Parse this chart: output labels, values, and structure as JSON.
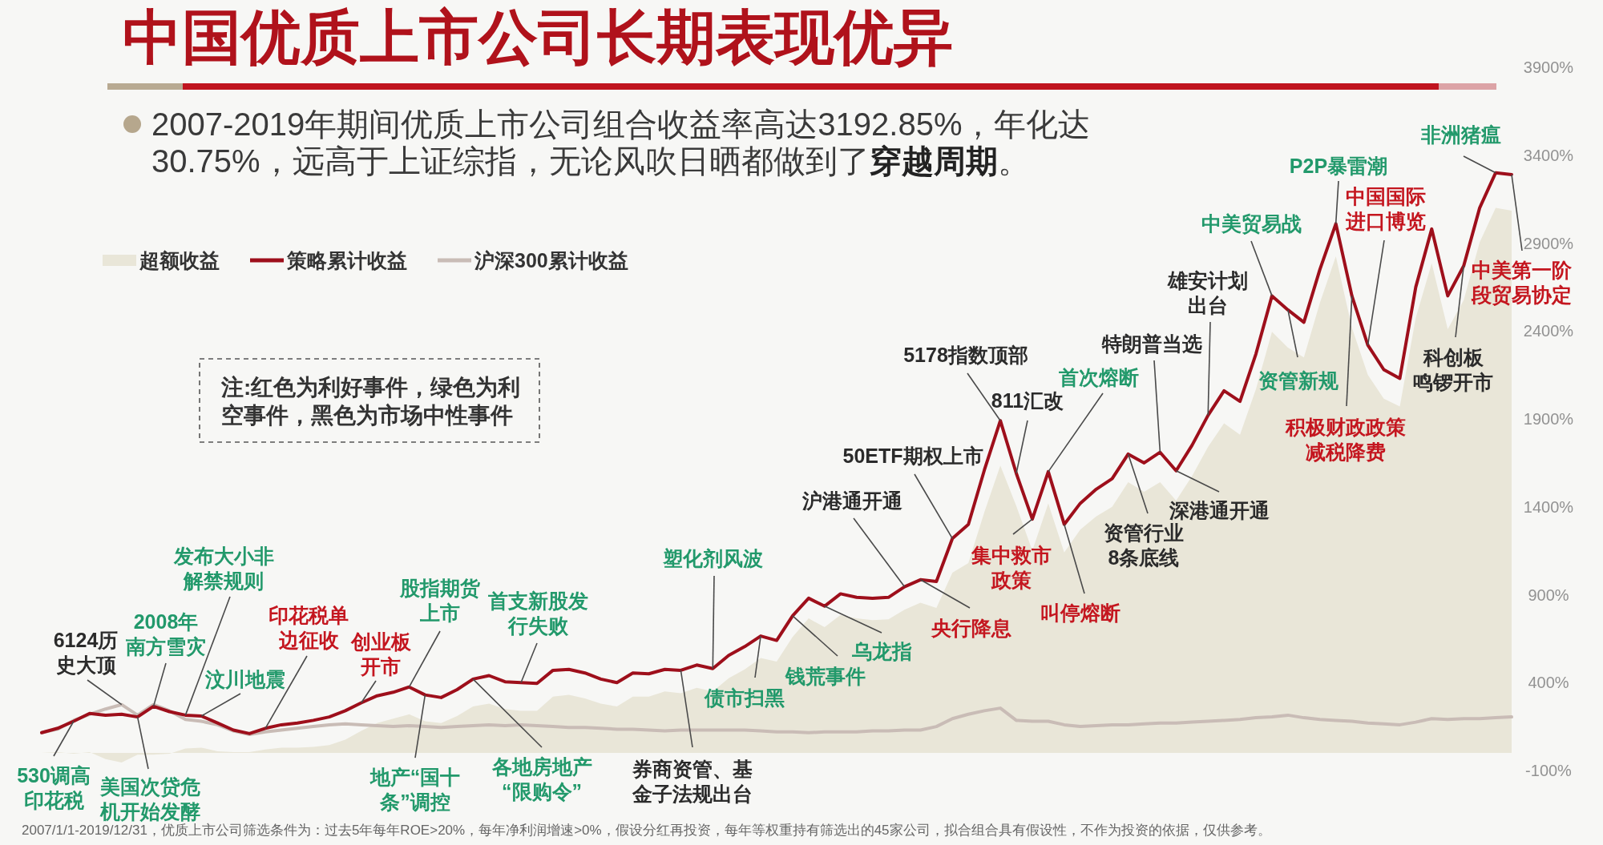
{
  "chart_data": {
    "type": "line",
    "title": "中国优质上市公司长期表现优异",
    "subtitle": "2007-2019年期间优质上市公司组合收益率高达3192.85%，年化达30.75%，远高于上证综指，无论风吹日晒都做到了**穿越周期**。",
    "categories": [
      null,
      null,
      null,
      null,
      null,
      null,
      null,
      null,
      null,
      null,
      null,
      null,
      null,
      null,
      null,
      null,
      null,
      null,
      null,
      null,
      null,
      null,
      null,
      null,
      null,
      null,
      null,
      null,
      null,
      null,
      null,
      null,
      null,
      null,
      null,
      null,
      null,
      null,
      null,
      null,
      null,
      null,
      null,
      null,
      null,
      null,
      null,
      null,
      null,
      null,
      null,
      null,
      null,
      null,
      null,
      null,
      null,
      null,
      null,
      null,
      null,
      null,
      null,
      null,
      null,
      null,
      null,
      null,
      null,
      null,
      null,
      null,
      null,
      null,
      null,
      null,
      null,
      null,
      null,
      null,
      null,
      null,
      null,
      null,
      null,
      null,
      null,
      null,
      null,
      null,
      null,
      null,
      null
    ],
    "series": [
      {
        "name": "超额收益",
        "type": "area",
        "color": "#e9e6d8",
        "values": [
          0,
          5,
          -5,
          5,
          -35,
          -55,
          -10,
          -10,
          -5,
          25,
          30,
          10,
          5,
          5,
          20,
          30,
          30,
          35,
          45,
          75,
          125,
          170,
          195,
          220,
          180,
          170,
          210,
          265,
          280,
          250,
          240,
          240,
          320,
          330,
          310,
          280,
          265,
          320,
          320,
          350,
          340,
          370,
          350,
          425,
          475,
          540,
          520,
          660,
          765,
          715,
          785,
          765,
          755,
          760,
          815,
          855,
          825,
          1025,
          1080,
          1370,
          1635,
          1405,
          1150,
          1420,
          1140,
          1270,
          1345,
          1400,
          1540,
          1485,
          1540,
          1435,
          1575,
          1740,
          1875,
          1810,
          2070,
          2395,
          2305,
          2250,
          2560,
          2825,
          2420,
          2150,
          2015,
          1970,
          2475,
          2785,
          2410,
          2575,
          2905,
          3100,
          3085
        ]
      },
      {
        "name": "策略累计收益",
        "color": "#9e0f1b",
        "values": [
          115,
          140,
          180,
          225,
          215,
          220,
          205,
          265,
          235,
          215,
          210,
          170,
          130,
          110,
          140,
          160,
          170,
          185,
          205,
          240,
          285,
          325,
          345,
          375,
          330,
          315,
          360,
          420,
          440,
          405,
          400,
          395,
          470,
          475,
          455,
          420,
          400,
          455,
          450,
          475,
          470,
          500,
          480,
          555,
          605,
          665,
          640,
          780,
          880,
          835,
          905,
          885,
          880,
          885,
          945,
          985,
          975,
          1220,
          1300,
          1610,
          1890,
          1590,
          1330,
          1600,
          1300,
          1420,
          1500,
          1560,
          1700,
          1650,
          1710,
          1605,
          1750,
          1920,
          2060,
          2000,
          2270,
          2600,
          2520,
          2450,
          2750,
          3010,
          2600,
          2320,
          2180,
          2130,
          2650,
          2980,
          2600,
          2770,
          3100,
          3300,
          3290
        ]
      },
      {
        "name": "沪深300累计收益",
        "color": "#c9bcb6",
        "values": [
          115,
          135,
          185,
          220,
          250,
          275,
          215,
          275,
          240,
          190,
          180,
          160,
          125,
          105,
          120,
          130,
          140,
          150,
          160,
          165,
          160,
          155,
          150,
          155,
          150,
          145,
          150,
          155,
          160,
          155,
          160,
          155,
          150,
          145,
          145,
          140,
          135,
          135,
          130,
          125,
          130,
          130,
          130,
          130,
          130,
          125,
          120,
          120,
          115,
          120,
          120,
          120,
          125,
          125,
          130,
          130,
          150,
          195,
          220,
          240,
          255,
          185,
          180,
          180,
          160,
          150,
          155,
          160,
          160,
          165,
          170,
          170,
          175,
          180,
          185,
          190,
          200,
          205,
          215,
          200,
          190,
          185,
          180,
          170,
          165,
          160,
          175,
          195,
          190,
          195,
          195,
          200,
          205
        ]
      }
    ],
    "ylim": [
      -100,
      3900
    ],
    "yticks": [
      {
        "value": -100,
        "label": "-100%"
      },
      {
        "value": 400,
        "label": "400%"
      },
      {
        "value": 900,
        "label": "900%"
      },
      {
        "value": 1400,
        "label": "1400%"
      },
      {
        "value": 1900,
        "label": "1900%"
      },
      {
        "value": 2400,
        "label": "2400%"
      },
      {
        "value": 2900,
        "label": "2900%"
      },
      {
        "value": 3400,
        "label": "3400%"
      },
      {
        "value": 3900,
        "label": "3900%"
      }
    ],
    "legend": "top left",
    "tick_labels": "y",
    "annotations": [
      "注:红色为利好事件，绿色为利空事件，黑色为市场中性事件",
      "2007/1/1-2019/12/31，优质上市公司筛选条件为：过去5年每年ROE>20%，每年净利润增速>0%，假设分红再投资，每年等权重持有筛选出的45家公司，拟合组合具有假设性，不作为投资的依据，仅供参考。",
      "530调高印花税",
      "6124历史大顶",
      "美国次贷危机开始发酵",
      "2008年南方雪灾",
      "发布大小非解禁规则",
      "汶川地震",
      "印花税单边征收",
      "创业板开市",
      "股指期货上市",
      "地产“国十条”调控",
      "各地房地产“限购令”",
      "首支新股发行失败",
      "券商资管、基金子法规出台",
      "塑化剂风波",
      "债市扫黑",
      "钱荒事件",
      "乌龙指",
      "沪港通开通",
      "央行降息",
      "50ETF期权上市",
      "5178指数顶部",
      "811汇改",
      "集中救市政策",
      "首次熔断",
      "叫停熔断",
      "资管行业8条底线",
      "特朗普当选",
      "深港通开通",
      "雄安计划出台",
      "中美贸易战",
      "资管新规",
      "P2P暴雷潮",
      "积极财政政策减税降费",
      "中国国际进口博览",
      "科创板鸣锣开市",
      "非洲猪瘟",
      "中美第一阶段贸易协定"
    ]
  }
}
